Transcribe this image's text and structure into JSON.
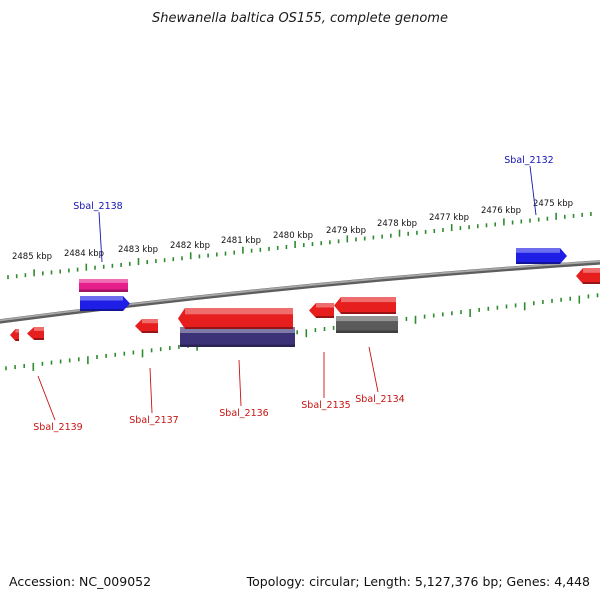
{
  "title": "Shewanella baltica OS155, complete genome",
  "footer": {
    "accession": "Accession: NC_009052",
    "summary": "Topology: circular; Length: 5,127,376 bp; Genes: 4,448"
  },
  "colors": {
    "backbone": "#8a8a8a",
    "ticks": "#2e8b2e",
    "label_plus": "#1414b4",
    "label_minus": "#c81414"
  },
  "ruler": {
    "unit": "kbp",
    "top_labels": [
      "2485 kbp",
      "2484 kbp",
      "2483 kbp",
      "2482 kbp",
      "2481 kbp",
      "2480 kbp",
      "2479 kbp",
      "2478 kbp",
      "2477 kbp",
      "2476 kbp",
      "2475 kbp"
    ]
  },
  "genes": [
    {
      "label": "Sbal_2132",
      "strand": "+",
      "color": "#1e1ee6"
    },
    {
      "label": "Sbal_2134",
      "strand": "-",
      "color": "#e61e1e"
    },
    {
      "label": "Sbal_2135",
      "strand": "-",
      "color": "#e61e1e"
    },
    {
      "label": "Sbal_2136",
      "strand": "-",
      "color": "#e61e1e"
    },
    {
      "label": "Sbal_2137",
      "strand": "-",
      "color": "#e61e1e"
    },
    {
      "label": "Sbal_2138",
      "strand": "+",
      "color": "#1e1ee6"
    },
    {
      "label": "Sbal_2139",
      "strand": "-",
      "color": "#e61e1e"
    }
  ],
  "features": [
    {
      "name": "Sbal_2138 feature",
      "color": "#e61e8c"
    },
    {
      "name": "Sbal_2136 feature",
      "color": "#3c3278"
    },
    {
      "name": "Sbal_2134 feature",
      "color": "#5a5a5a"
    }
  ]
}
